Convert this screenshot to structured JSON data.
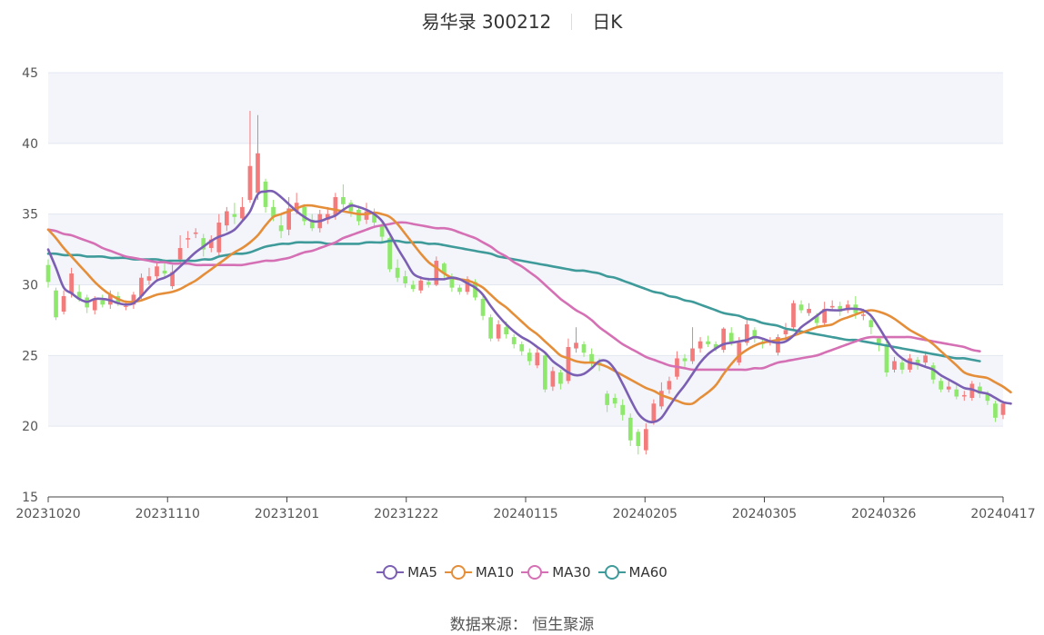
{
  "header": {
    "name": "易华录 300212",
    "period": "日K"
  },
  "source_text": "数据来源： 恒生聚源",
  "colors": {
    "up": "#f47b7b",
    "down": "#8de86b",
    "MA5": "#7b5fb3",
    "MA10": "#e58e3a",
    "MA30": "#d570b4",
    "MA60": "#3f9a9a",
    "grid": "#e3e8f0",
    "band": "#f3f5fb"
  },
  "chart_data": {
    "type": "candlestick",
    "title": "易华录 300212 日K",
    "ylim": [
      15,
      45
    ],
    "y_ticks": [
      15,
      20,
      25,
      30,
      35,
      40,
      45
    ],
    "x_tick_labels": [
      "20231020",
      "20231110",
      "20231201",
      "20231222",
      "20240115",
      "20240205",
      "20240305",
      "20240326",
      "20240417"
    ],
    "legend": [
      "MA5",
      "MA10",
      "MA30",
      "MA60"
    ],
    "legend_position": "bottom",
    "candles": [
      [
        31.4,
        30.2,
        31.8,
        29.8
      ],
      [
        29.6,
        27.7,
        29.8,
        27.5
      ],
      [
        28.1,
        29.2,
        29.6,
        27.9
      ],
      [
        29.4,
        30.8,
        31.2,
        29.1
      ],
      [
        29.5,
        29.0,
        30.0,
        28.8
      ],
      [
        29.1,
        28.4,
        29.3,
        28.0
      ],
      [
        28.2,
        29.0,
        29.2,
        27.9
      ],
      [
        28.9,
        28.6,
        29.3,
        28.4
      ],
      [
        28.6,
        29.3,
        29.6,
        28.3
      ],
      [
        29.2,
        28.7,
        29.5,
        28.5
      ],
      [
        28.5,
        28.5,
        28.9,
        28.2
      ],
      [
        28.6,
        29.3,
        29.5,
        28.3
      ],
      [
        29.2,
        30.5,
        30.8,
        29.0
      ],
      [
        30.3,
        30.6,
        31.2,
        30.0
      ],
      [
        30.6,
        31.3,
        31.6,
        30.3
      ],
      [
        31.0,
        30.8,
        31.8,
        30.5
      ],
      [
        29.9,
        30.9,
        31.4,
        29.7
      ],
      [
        31.8,
        32.6,
        33.5,
        31.5
      ],
      [
        33.2,
        33.3,
        33.8,
        32.6
      ],
      [
        33.6,
        33.7,
        34.0,
        33.3
      ],
      [
        33.3,
        32.5,
        33.6,
        32.0
      ],
      [
        32.6,
        33.2,
        33.5,
        32.3
      ],
      [
        32.3,
        34.4,
        35.0,
        32.0
      ],
      [
        34.2,
        35.2,
        35.5,
        33.8
      ],
      [
        35.0,
        34.8,
        35.8,
        34.3
      ],
      [
        34.7,
        35.5,
        36.2,
        34.5
      ],
      [
        36.0,
        38.4,
        42.3,
        35.8
      ],
      [
        36.5,
        39.3,
        42.0,
        36.0
      ],
      [
        37.3,
        35.5,
        37.5,
        35.1
      ],
      [
        35.5,
        34.8,
        36.0,
        34.5
      ],
      [
        34.2,
        33.8,
        35.0,
        33.3
      ],
      [
        33.9,
        35.4,
        36.2,
        33.5
      ],
      [
        35.2,
        35.8,
        36.5,
        35.0
      ],
      [
        35.5,
        34.5,
        35.7,
        34.2
      ],
      [
        34.6,
        34.0,
        35.0,
        33.8
      ],
      [
        34.0,
        35.0,
        35.3,
        33.7
      ],
      [
        34.6,
        35.0,
        35.5,
        34.3
      ],
      [
        34.9,
        36.2,
        36.5,
        34.6
      ],
      [
        36.2,
        35.7,
        37.1,
        35.3
      ],
      [
        35.8,
        35.2,
        36.0,
        34.8
      ],
      [
        35.3,
        34.5,
        35.6,
        34.2
      ],
      [
        34.6,
        35.2,
        35.8,
        34.3
      ],
      [
        35.0,
        34.4,
        35.4,
        34.0
      ],
      [
        34.2,
        33.4,
        34.5,
        33.0
      ],
      [
        33.3,
        31.1,
        33.4,
        30.9
      ],
      [
        31.2,
        30.5,
        31.8,
        30.2
      ],
      [
        30.6,
        30.1,
        31.0,
        29.8
      ],
      [
        30.0,
        29.7,
        30.3,
        29.5
      ],
      [
        29.6,
        30.3,
        30.6,
        29.4
      ],
      [
        30.2,
        30.0,
        30.5,
        29.8
      ],
      [
        30.0,
        31.7,
        32.0,
        29.9
      ],
      [
        31.5,
        30.8,
        31.6,
        30.5
      ],
      [
        30.6,
        29.8,
        30.8,
        29.5
      ],
      [
        29.8,
        29.5,
        30.0,
        29.3
      ],
      [
        29.5,
        30.4,
        30.6,
        29.3
      ],
      [
        30.2,
        29.1,
        30.4,
        28.9
      ],
      [
        29.0,
        27.8,
        29.2,
        27.5
      ],
      [
        27.7,
        26.2,
        27.9,
        26.0
      ],
      [
        26.2,
        27.2,
        27.5,
        26.0
      ],
      [
        27.0,
        26.5,
        27.4,
        26.2
      ],
      [
        26.3,
        25.8,
        26.5,
        25.5
      ],
      [
        25.8,
        25.3,
        26.0,
        25.0
      ],
      [
        25.2,
        24.6,
        25.5,
        24.3
      ],
      [
        24.3,
        25.2,
        25.5,
        24.1
      ],
      [
        25.0,
        22.6,
        25.2,
        22.4
      ],
      [
        22.8,
        23.9,
        24.2,
        22.5
      ],
      [
        23.8,
        23.0,
        24.0,
        22.6
      ],
      [
        23.2,
        25.6,
        26.2,
        23.0
      ],
      [
        25.5,
        25.9,
        27.0,
        25.2
      ],
      [
        25.8,
        25.2,
        26.0,
        24.9
      ],
      [
        25.1,
        24.5,
        25.5,
        24.2
      ],
      [
        24.5,
        24.3,
        24.8,
        23.9
      ],
      [
        22.3,
        21.5,
        22.5,
        21.0
      ],
      [
        22.0,
        21.6,
        22.3,
        21.3
      ],
      [
        21.5,
        20.8,
        21.9,
        20.4
      ],
      [
        20.6,
        19.0,
        20.9,
        18.6
      ],
      [
        19.6,
        18.6,
        19.8,
        18.0
      ],
      [
        18.3,
        19.8,
        20.2,
        18.0
      ],
      [
        20.3,
        21.6,
        21.9,
        20.1
      ],
      [
        21.4,
        22.5,
        23.1,
        21.2
      ],
      [
        22.6,
        23.2,
        23.5,
        22.3
      ],
      [
        23.5,
        24.8,
        25.3,
        23.3
      ],
      [
        24.8,
        24.6,
        25.1,
        24.2
      ],
      [
        24.6,
        25.5,
        27.0,
        24.4
      ],
      [
        25.5,
        26.0,
        26.3,
        25.2
      ],
      [
        26.0,
        25.8,
        26.4,
        25.6
      ],
      [
        25.8,
        25.5,
        26.0,
        25.3
      ],
      [
        25.4,
        26.9,
        27.0,
        25.2
      ],
      [
        26.6,
        25.9,
        27.0,
        25.7
      ],
      [
        24.5,
        25.9,
        26.3,
        24.3
      ],
      [
        25.9,
        27.2,
        27.6,
        25.7
      ],
      [
        26.8,
        26.2,
        27.0,
        25.9
      ],
      [
        25.9,
        25.8,
        26.2,
        25.5
      ],
      [
        25.9,
        26.0,
        26.3,
        25.7
      ],
      [
        25.2,
        26.3,
        26.5,
        25.0
      ],
      [
        26.5,
        26.8,
        27.3,
        26.2
      ],
      [
        27.0,
        28.7,
        28.9,
        26.8
      ],
      [
        28.6,
        28.2,
        28.9,
        28.0
      ],
      [
        28.0,
        28.3,
        28.7,
        27.8
      ],
      [
        27.8,
        27.3,
        28.0,
        27.0
      ],
      [
        27.3,
        28.3,
        28.8,
        27.1
      ],
      [
        28.4,
        28.5,
        28.9,
        28.2
      ],
      [
        28.5,
        28.1,
        28.8,
        27.8
      ],
      [
        28.2,
        28.6,
        28.9,
        28.0
      ],
      [
        28.6,
        28.0,
        29.2,
        27.6
      ],
      [
        27.8,
        27.9,
        28.3,
        27.5
      ],
      [
        27.5,
        27.0,
        27.8,
        26.5
      ],
      [
        26.2,
        25.8,
        26.3,
        25.3
      ],
      [
        25.8,
        23.8,
        26.0,
        23.5
      ],
      [
        24.0,
        24.6,
        24.9,
        23.8
      ],
      [
        24.5,
        24.0,
        24.8,
        23.7
      ],
      [
        24.0,
        24.8,
        25.1,
        23.8
      ],
      [
        24.7,
        24.3,
        24.9,
        24.0
      ],
      [
        24.5,
        25.0,
        25.3,
        24.2
      ],
      [
        24.3,
        23.3,
        24.5,
        23.0
      ],
      [
        23.2,
        22.6,
        23.4,
        22.4
      ],
      [
        22.6,
        22.8,
        23.2,
        22.4
      ],
      [
        22.6,
        22.1,
        22.9,
        21.9
      ],
      [
        22.1,
        22.2,
        22.5,
        21.8
      ],
      [
        22.0,
        23.0,
        23.2,
        21.8
      ],
      [
        22.8,
        22.3,
        23.1,
        22.0
      ],
      [
        22.3,
        21.8,
        22.5,
        21.5
      ],
      [
        21.6,
        20.6,
        21.8,
        20.3
      ],
      [
        20.8,
        21.6,
        21.8,
        20.5
      ]
    ],
    "series": [
      {
        "name": "MA5",
        "values": [
          32.5,
          31.2,
          29.8,
          29.4,
          29.0,
          28.8,
          29.0,
          29.0,
          28.9,
          28.7,
          28.6,
          28.7,
          29.2,
          29.8,
          30.3,
          30.5,
          30.8,
          31.3,
          31.8,
          32.3,
          32.7,
          33.1,
          33.4,
          33.6,
          33.9,
          34.5,
          35.2,
          36.4,
          36.6,
          36.6,
          36.2,
          35.7,
          35.2,
          34.8,
          34.5,
          34.5,
          34.7,
          34.9,
          35.3,
          35.6,
          35.5,
          35.3,
          35.0,
          34.5,
          33.6,
          32.6,
          31.7,
          30.8,
          30.5,
          30.4,
          30.4,
          30.4,
          30.5,
          30.4,
          30.1,
          29.8,
          29.3,
          28.5,
          27.8,
          27.2,
          26.7,
          26.3,
          26.0,
          25.6,
          25.2,
          24.6,
          24.2,
          23.8,
          23.6,
          23.7,
          24.1,
          24.6,
          24.6,
          24.0,
          23.0,
          21.9,
          20.9,
          20.4,
          20.3,
          20.6,
          21.4,
          22.2,
          22.9,
          23.7,
          24.5,
          25.1,
          25.5,
          25.8,
          25.9,
          26.0,
          26.1,
          26.3,
          26.2,
          26.0,
          25.9,
          26.0,
          26.4,
          27.0,
          27.4,
          27.8,
          28.2,
          28.2,
          28.2,
          28.3,
          28.3,
          28.2,
          27.8,
          27.0,
          26.1,
          25.3,
          24.8,
          24.5,
          24.4,
          24.2,
          24.0,
          23.6,
          23.3,
          23.0,
          22.7,
          22.6,
          22.4,
          22.3,
          22.0,
          21.7,
          21.6
        ]
      },
      {
        "name": "MA10",
        "values": [
          33.9,
          33.3,
          32.6,
          32.0,
          31.4,
          30.8,
          30.2,
          29.7,
          29.3,
          29.0,
          28.8,
          28.8,
          28.9,
          29.1,
          29.3,
          29.4,
          29.5,
          29.7,
          30.0,
          30.3,
          30.7,
          31.1,
          31.5,
          31.9,
          32.3,
          32.6,
          33.0,
          33.5,
          34.2,
          34.8,
          35.0,
          35.2,
          35.4,
          35.6,
          35.6,
          35.5,
          35.4,
          35.3,
          35.2,
          35.1,
          35.0,
          35.0,
          35.1,
          35.0,
          34.8,
          34.3,
          33.6,
          32.9,
          32.2,
          31.6,
          31.2,
          30.8,
          30.5,
          30.4,
          30.3,
          30.1,
          29.8,
          29.3,
          28.8,
          28.4,
          27.9,
          27.4,
          26.9,
          26.5,
          26.0,
          25.5,
          25.0,
          24.8,
          24.6,
          24.5,
          24.5,
          24.4,
          24.2,
          23.9,
          23.6,
          23.3,
          23.0,
          22.7,
          22.5,
          22.2,
          22.0,
          21.8,
          21.6,
          21.6,
          22.0,
          22.4,
          22.9,
          23.7,
          24.4,
          25.0,
          25.4,
          25.7,
          25.9,
          26.0,
          26.1,
          26.2,
          26.4,
          26.6,
          26.8,
          27.0,
          27.1,
          27.2,
          27.5,
          27.7,
          27.9,
          28.1,
          28.2,
          28.1,
          27.9,
          27.6,
          27.2,
          26.8,
          26.5,
          26.2,
          25.8,
          25.3,
          24.8,
          24.3,
          23.8,
          23.6,
          23.5,
          23.4,
          23.1,
          22.8,
          22.4
        ]
      },
      {
        "name": "MA30",
        "values": [
          33.9,
          33.8,
          33.6,
          33.5,
          33.3,
          33.1,
          32.9,
          32.6,
          32.4,
          32.2,
          32.0,
          31.9,
          31.8,
          31.7,
          31.6,
          31.6,
          31.5,
          31.5,
          31.5,
          31.4,
          31.4,
          31.4,
          31.4,
          31.4,
          31.4,
          31.4,
          31.5,
          31.6,
          31.7,
          31.7,
          31.8,
          31.9,
          32.1,
          32.3,
          32.4,
          32.6,
          32.8,
          33.0,
          33.3,
          33.5,
          33.7,
          33.9,
          34.1,
          34.2,
          34.3,
          34.4,
          34.4,
          34.3,
          34.2,
          34.1,
          34.0,
          34.0,
          33.9,
          33.7,
          33.5,
          33.3,
          33.0,
          32.7,
          32.3,
          32.0,
          31.6,
          31.3,
          30.9,
          30.5,
          30.0,
          29.5,
          29.0,
          28.6,
          28.2,
          27.9,
          27.5,
          27.0,
          26.6,
          26.2,
          25.8,
          25.5,
          25.2,
          24.9,
          24.7,
          24.5,
          24.3,
          24.2,
          24.1,
          24.0,
          24.0,
          24.0,
          24.0,
          24.0,
          24.0,
          24.0,
          24.0,
          24.1,
          24.1,
          24.3,
          24.5,
          24.6,
          24.7,
          24.8,
          24.9,
          25.0,
          25.2,
          25.4,
          25.6,
          25.8,
          26.0,
          26.2,
          26.3,
          26.3,
          26.3,
          26.3,
          26.3,
          26.3,
          26.2,
          26.1,
          26.0,
          25.9,
          25.8,
          25.7,
          25.6,
          25.4,
          25.3
        ]
      },
      {
        "name": "MA60",
        "values": [
          32.2,
          32.2,
          32.1,
          32.1,
          32.1,
          32.0,
          32.0,
          32.0,
          31.9,
          31.9,
          31.9,
          31.8,
          31.8,
          31.8,
          31.8,
          31.7,
          31.7,
          31.7,
          31.7,
          31.7,
          31.8,
          31.8,
          32.0,
          32.1,
          32.2,
          32.2,
          32.3,
          32.5,
          32.7,
          32.8,
          32.9,
          32.9,
          33.0,
          33.0,
          33.0,
          33.0,
          32.9,
          32.9,
          32.9,
          32.9,
          32.9,
          33.0,
          33.0,
          33.0,
          33.1,
          33.1,
          33.0,
          33.0,
          33.0,
          32.9,
          32.9,
          32.8,
          32.7,
          32.6,
          32.5,
          32.4,
          32.3,
          32.2,
          32.0,
          31.9,
          31.8,
          31.7,
          31.6,
          31.5,
          31.4,
          31.3,
          31.2,
          31.1,
          31.0,
          31.0,
          30.9,
          30.8,
          30.6,
          30.5,
          30.3,
          30.1,
          29.9,
          29.7,
          29.5,
          29.4,
          29.2,
          29.1,
          28.9,
          28.8,
          28.6,
          28.4,
          28.2,
          28.0,
          27.9,
          27.8,
          27.6,
          27.5,
          27.3,
          27.2,
          27.1,
          26.9,
          26.8,
          26.7,
          26.6,
          26.5,
          26.4,
          26.3,
          26.2,
          26.1,
          26.1,
          26.0,
          25.9,
          25.8,
          25.7,
          25.6,
          25.5,
          25.4,
          25.3,
          25.2,
          25.1,
          25.0,
          24.9,
          24.8,
          24.8,
          24.7,
          24.6
        ]
      }
    ]
  }
}
